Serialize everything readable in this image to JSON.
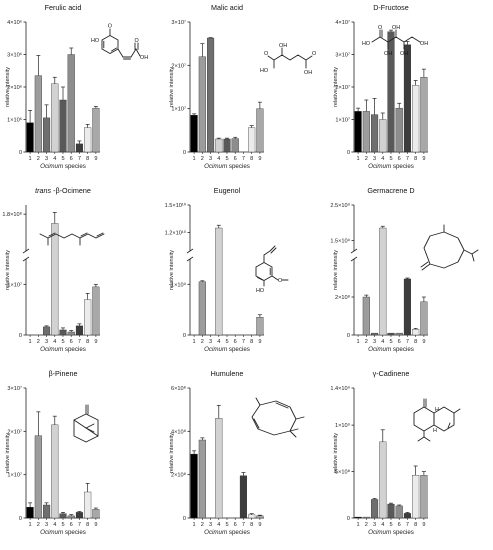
{
  "figure": {
    "x_label_prefix": "",
    "x_label_italic": "Ocimum",
    "x_label_suffix": " species",
    "y_label": "relative intensity"
  },
  "colors": [
    "#000000",
    "#9c9c9c",
    "#6f6f6f",
    "#d2d2d2",
    "#595959",
    "#8d8d8d",
    "#3d3d3d",
    "#ebebeb",
    "#a8a8a8"
  ],
  "chart_data": [
    {
      "type": "bar",
      "title": "Ferulic acid",
      "categories": [
        "1",
        "2",
        "3",
        "4",
        "5",
        "6",
        "7",
        "8",
        "9"
      ],
      "values": [
        900000.0,
        2350000.0,
        1050000.0,
        2100000.0,
        1600000.0,
        3000000.0,
        250000.0,
        750000.0,
        1350000.0
      ],
      "errors": [
        380000.0,
        620000.0,
        400000.0,
        200000.0,
        400000.0,
        200000.0,
        90000.0,
        100000.0,
        50000.0
      ],
      "ylim": [
        0,
        4000000.0
      ],
      "ticks": [
        0,
        1000000.0,
        2000000.0,
        3000000.0,
        4000000.0
      ],
      "tick_labels": [
        "0",
        "1×10⁶",
        "2×10⁶",
        "3×10⁶",
        "4×10⁶"
      ],
      "xlabel": "Ocimum species",
      "ylabel": "relative intensity",
      "molecule": "ferulic-acid",
      "grid": false
    },
    {
      "type": "bar",
      "title": "Malic acid",
      "categories": [
        "1",
        "2",
        "3",
        "4",
        "5",
        "6",
        "7",
        "8",
        "9"
      ],
      "values": [
        8500000.0,
        22000000.0,
        26300000.0,
        3000000.0,
        3000000.0,
        3100000.0,
        0,
        5600000.0,
        10000000.0
      ],
      "errors": [
        300000.0,
        3000000.0,
        100000.0,
        200000.0,
        200000.0,
        300000.0,
        0,
        500000.0,
        1500000.0
      ],
      "ylim": [
        0,
        30000000.0
      ],
      "ticks": [
        0,
        10000000.0,
        20000000.0,
        30000000.0
      ],
      "tick_labels": [
        "0",
        "1×10⁷",
        "2×10⁷",
        "3×10⁷"
      ],
      "xlabel": "Ocimum species",
      "ylabel": "relative intensity",
      "molecule": "malic-acid",
      "grid": false
    },
    {
      "type": "bar",
      "title": "D-Fructose",
      "categories": [
        "1",
        "2",
        "3",
        "4",
        "5",
        "6",
        "7",
        "8",
        "9"
      ],
      "values": [
        12500000.0,
        12500000.0,
        11500000.0,
        10000000.0,
        37000000.0,
        13500000.0,
        33000000.0,
        20500000.0,
        23000000.0
      ],
      "errors": [
        1000000.0,
        3500000.0,
        5000000.0,
        2000000.0,
        500000.0,
        1500000.0,
        1000000.0,
        1500000.0,
        2500000.0
      ],
      "ylim": [
        0,
        40000000.0
      ],
      "ticks": [
        0,
        10000000.0,
        20000000.0,
        30000000.0,
        40000000.0
      ],
      "tick_labels": [
        "0",
        "1×10⁷",
        "2×10⁷",
        "3×10⁷",
        "4×10⁷"
      ],
      "xlabel": "Ocimum species",
      "ylabel": "relative intensity",
      "molecule": "d-fructose",
      "grid": false
    },
    {
      "type": "bar",
      "title": "trans -β-Ocimene",
      "title_italic_part": "trans",
      "title_rest": " -β-Ocimene",
      "categories": [
        "1",
        "2",
        "3",
        "4",
        "5",
        "6",
        "7",
        "8",
        "9"
      ],
      "values": [
        0,
        0,
        1600000.0,
        170000000.0,
        1000000.0,
        600000.0,
        1800000.0,
        7000000.0,
        9500000.0
      ],
      "errors": [
        0,
        0,
        200000.0,
        12000000.0,
        400000.0,
        300000.0,
        400000.0,
        1200000.0,
        500000.0
      ],
      "broken_axis": true,
      "lower_range": [
        0,
        15000000.0
      ],
      "upper_range": [
        140000000.0,
        190000000.0
      ],
      "ticks_lower": [
        10000000.0
      ],
      "ticks_upper": [
        180000000.0
      ],
      "tick_labels": [
        "0",
        "1×10⁷",
        "1.8×10⁸"
      ],
      "xlabel": "Ocimum species",
      "ylabel": "relative intensity",
      "molecule": "ocimene",
      "grid": false
    },
    {
      "type": "bar",
      "title": "Eugenol",
      "categories": [
        "1",
        "2",
        "3",
        "4",
        "5",
        "6",
        "7",
        "8",
        "9"
      ],
      "values": [
        0,
        1050000000.0,
        0,
        12500000000.0,
        0,
        0,
        0,
        0,
        350000000.0
      ],
      "errors": [
        0,
        20000000.0,
        0,
        300000000.0,
        0,
        0,
        0,
        0,
        50000000.0
      ],
      "broken_axis": true,
      "lower_range": [
        0,
        1500000000.0
      ],
      "upper_range": [
        10000000000.0,
        15000000000.0
      ],
      "ticks_lower": [
        1000000000.0
      ],
      "ticks_upper": [
        12000000000.0,
        15000000000.0
      ],
      "tick_labels": [
        "0",
        "1×10⁹",
        "1.2×10¹⁰",
        "1.5×10¹⁰"
      ],
      "xlabel": "Ocimum species",
      "ylabel": "relative intensity",
      "molecule": "eugenol",
      "grid": false
    },
    {
      "type": "bar",
      "title": "Germacrene D",
      "categories": [
        "1",
        "2",
        "3",
        "4",
        "5",
        "6",
        "7",
        "8",
        "9"
      ],
      "values": [
        0,
        200000000.0,
        10000000.0,
        1850000000.0,
        10000000.0,
        10000000.0,
        295000000.0,
        30000000.0,
        175000000.0
      ],
      "errors": [
        0,
        10000000.0,
        0,
        50000000.0,
        0,
        0,
        5000000.0,
        5000000.0,
        25000000.0
      ],
      "broken_axis": true,
      "lower_range": [
        0,
        400000000.0
      ],
      "upper_range": [
        1200000000.0,
        2500000000.0
      ],
      "ticks_lower": [
        200000000.0
      ],
      "ticks_upper": [
        1500000000.0,
        2500000000.0
      ],
      "tick_labels": [
        "0",
        "2×10⁸",
        "1.5×10⁹",
        "2.5×10⁹"
      ],
      "xlabel": "Ocimum species",
      "ylabel": "relative intensity",
      "molecule": "germacrene",
      "grid": false
    },
    {
      "type": "bar",
      "title": "β-Pinene",
      "categories": [
        "1",
        "2",
        "3",
        "4",
        "5",
        "6",
        "7",
        "8",
        "9"
      ],
      "values": [
        2500000.0,
        19000000.0,
        3000000.0,
        21500000.0,
        1000000.0,
        500000.0,
        1300000.0,
        6000000.0,
        2000000.0
      ],
      "errors": [
        1000000.0,
        5500000.0,
        500000.0,
        2000000.0,
        300000.0,
        300000.0,
        200000.0,
        2000000.0,
        300000.0
      ],
      "ylim": [
        0,
        30000000.0
      ],
      "ticks": [
        0,
        10000000.0,
        20000000.0,
        30000000.0
      ],
      "tick_labels": [
        "0",
        "1×10⁷",
        "2×10⁷",
        "3×10⁷"
      ],
      "xlabel": "Ocimum species",
      "ylabel": "relative intensity",
      "molecule": "pinene",
      "grid": false
    },
    {
      "type": "bar",
      "title": "Humulene",
      "categories": [
        "1",
        "2",
        "3",
        "4",
        "5",
        "6",
        "7",
        "8",
        "9"
      ],
      "values": [
        295000000.0,
        360000000.0,
        0,
        460000000.0,
        0,
        0,
        195000000.0,
        15000000.0,
        10000000.0
      ],
      "errors": [
        15000000.0,
        10000000.0,
        0,
        60000000.0,
        0,
        0,
        15000000.0,
        5000000.0,
        3000000.0
      ],
      "ylim": [
        0,
        600000000.0
      ],
      "ticks": [
        0,
        200000000.0,
        400000000.0,
        600000000.0
      ],
      "tick_labels": [
        "0",
        "2×10⁸",
        "4×10⁸",
        "6×10⁸"
      ],
      "xlabel": "Ocimum species",
      "ylabel": "relative intensity",
      "molecule": "humulene",
      "grid": false
    },
    {
      "type": "bar",
      "title": "γ-Cadinene",
      "categories": [
        "1",
        "2",
        "3",
        "4",
        "5",
        "6",
        "7",
        "8",
        "9"
      ],
      "values": [
        10000000.0,
        10000000.0,
        200000000.0,
        820000000.0,
        150000000.0,
        130000000.0,
        50000000.0,
        460000000.0,
        460000000.0
      ],
      "errors": [
        0,
        0,
        10000000.0,
        130000000.0,
        10000000.0,
        10000000.0,
        10000000.0,
        100000000.0,
        40000000.0
      ],
      "ylim": [
        0,
        1400000000.0
      ],
      "ticks": [
        0,
        500000000.0,
        1000000000.0,
        1400000000.0
      ],
      "tick_labels": [
        "0",
        "5×10⁸",
        "1×10⁹",
        "1.4×10⁹"
      ],
      "xlabel": "Ocimum species",
      "ylabel": "relative intensity",
      "molecule": "cadinene",
      "grid": false
    }
  ]
}
